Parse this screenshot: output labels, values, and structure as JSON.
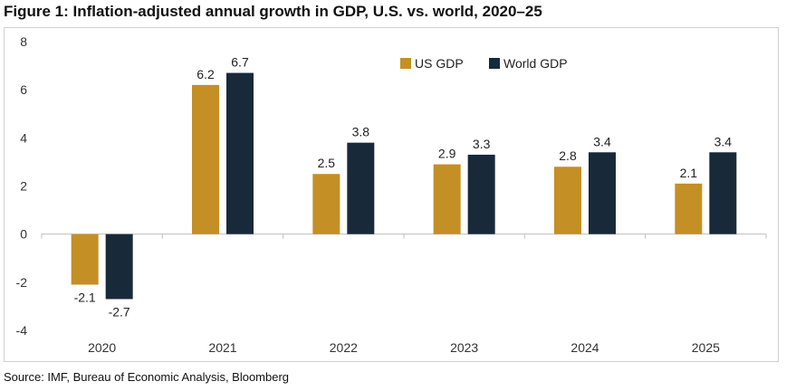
{
  "title": "Figure 1: Inflation-adjusted annual growth in GDP, U.S. vs. world, 2020–25",
  "source": "Source: IMF, Bureau of Economic Analysis, Bloomberg",
  "colors": {
    "us": "#C48F25",
    "world": "#18293A",
    "axis": "#bfbfbf",
    "text": "#333333"
  },
  "chart_data": {
    "type": "bar",
    "title": "Inflation-adjusted annual growth in GDP, U.S. vs. world, 2020–25",
    "xlabel": "",
    "ylabel": "",
    "categories": [
      "2020",
      "2021",
      "2022",
      "2023",
      "2024",
      "2025"
    ],
    "series": [
      {
        "name": "US GDP",
        "values": [
          -2.1,
          6.2,
          2.5,
          2.9,
          2.8,
          2.1
        ]
      },
      {
        "name": "World GDP",
        "values": [
          -2.7,
          6.7,
          3.8,
          3.3,
          3.4,
          3.4
        ]
      }
    ],
    "data_labels": {
      "US GDP": [
        "-2.1",
        "6.2",
        "2.5",
        "2.9",
        "2.8",
        "2.1"
      ],
      "World GDP": [
        "-2.7",
        "6.7",
        "3.8",
        "3.3",
        "3.4",
        "3.4"
      ]
    },
    "ylim": [
      -4,
      8
    ],
    "yticks": [
      -4,
      -2,
      0,
      2,
      4,
      6,
      8
    ],
    "grid": false,
    "legend": "top-right"
  }
}
